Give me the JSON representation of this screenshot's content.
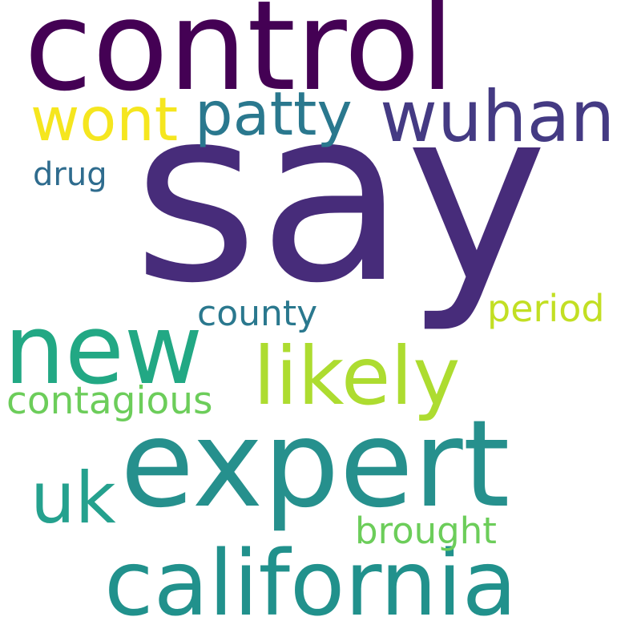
{
  "words": [
    {
      "id": "say",
      "text": "say",
      "color": "#472c7a"
    },
    {
      "id": "control",
      "text": "control",
      "color": "#440154"
    },
    {
      "id": "expert",
      "text": "expert",
      "color": "#26908d"
    },
    {
      "id": "california",
      "text": "california",
      "color": "#21918c"
    },
    {
      "id": "new",
      "text": "new",
      "color": "#22a884"
    },
    {
      "id": "likely",
      "text": "likely",
      "color": "#addc30"
    },
    {
      "id": "wuhan",
      "text": "wuhan",
      "color": "#443a83"
    },
    {
      "id": "uk",
      "text": "uk",
      "color": "#25a18e"
    },
    {
      "id": "wont",
      "text": "wont",
      "color": "#f5e61f"
    },
    {
      "id": "patty",
      "text": "patty",
      "color": "#2a788e"
    },
    {
      "id": "contagious",
      "text": "contagious",
      "color": "#6ccd5a"
    },
    {
      "id": "brought",
      "text": "brought",
      "color": "#6ccd5a"
    },
    {
      "id": "period",
      "text": "period",
      "color": "#c2df23"
    },
    {
      "id": "county",
      "text": "county",
      "color": "#2a788e"
    },
    {
      "id": "drug",
      "text": "drug",
      "color": "#2f6c8e"
    }
  ]
}
